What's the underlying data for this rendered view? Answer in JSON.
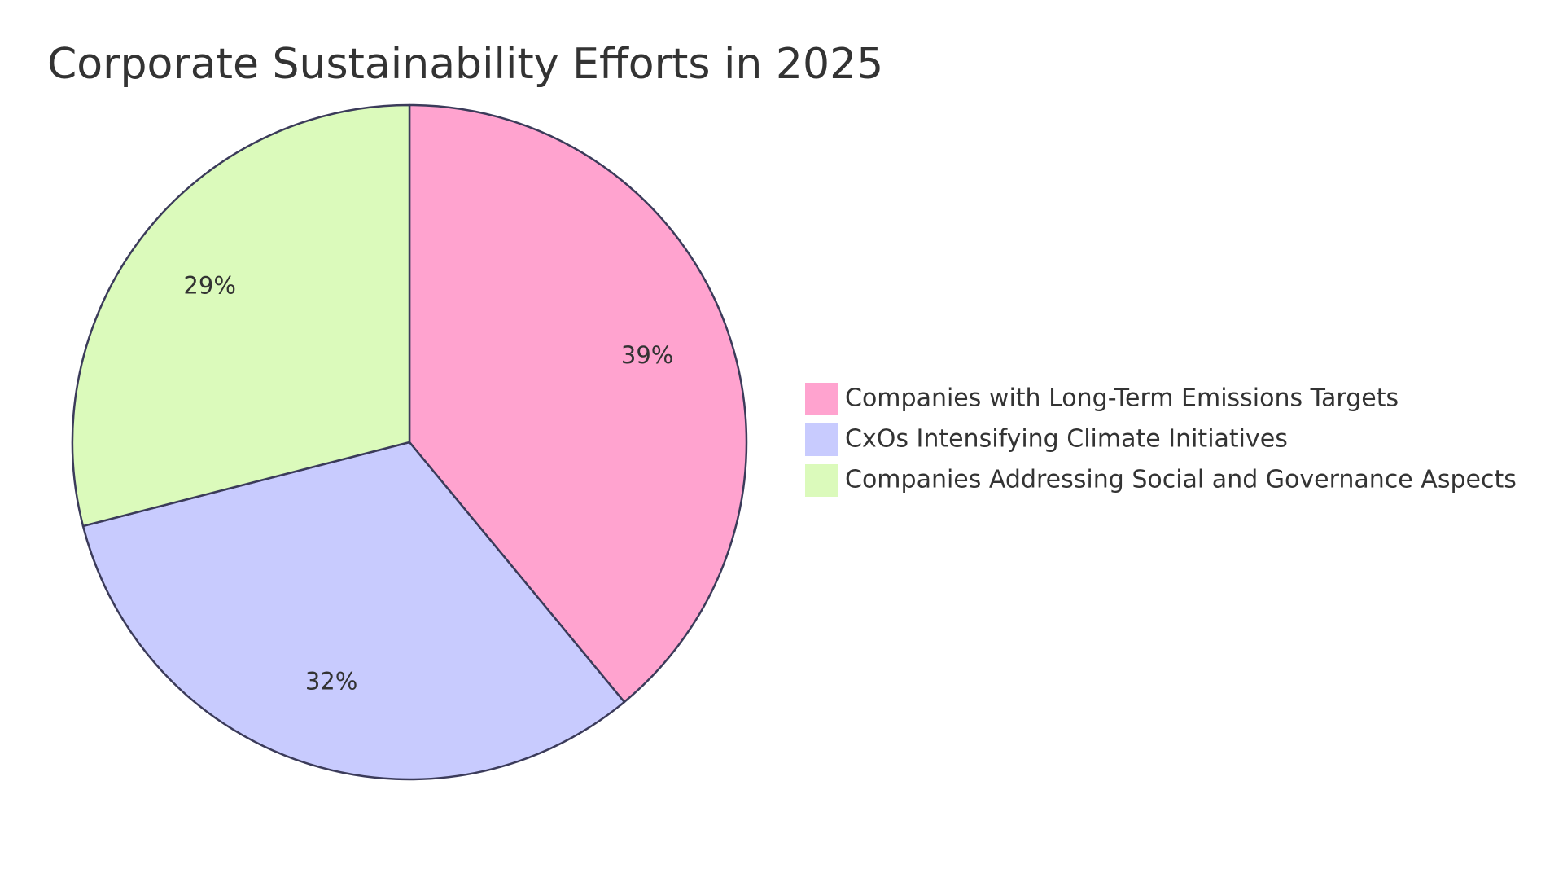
{
  "chart_data": {
    "type": "pie",
    "title": "Corporate Sustainability Efforts in 2025",
    "start_angle_deg": 0,
    "direction": "clockwise",
    "legend_position": "right",
    "slices": [
      {
        "label": "Companies with Long-Term Emissions Targets",
        "value": 39,
        "display": "39%",
        "color": "#ffa3cf"
      },
      {
        "label": "CxOs Intensifying Climate Initiatives",
        "value": 32,
        "display": "32%",
        "color": "#c8cbfe"
      },
      {
        "label": "Companies Addressing Social and Governance Aspects",
        "value": 29,
        "display": "29%",
        "color": "#dbfabb"
      }
    ],
    "stroke_color": "#3b3b5a"
  }
}
